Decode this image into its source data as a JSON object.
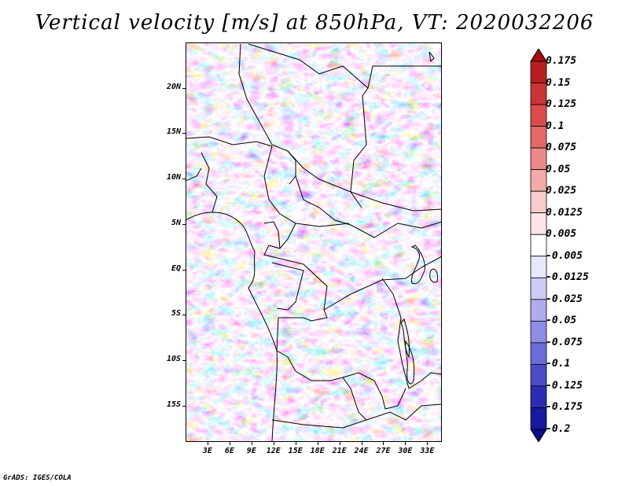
{
  "title": "Vertical velocity [m/s] at 850hPa, VT: 2020032206",
  "credit": "GrADS: IGES/COLA",
  "map": {
    "variable": "Vertical velocity",
    "units": "m/s",
    "level": "850hPa",
    "valid_time": "2020032206",
    "region": "Central / Northern Africa",
    "lon_range": [
      0,
      35
    ],
    "lat_range": [
      -19,
      25
    ],
    "lat_ticks": [
      "20N",
      "15N",
      "10N",
      "5N",
      "EQ",
      "5S",
      "10S",
      "15S"
    ],
    "lat_values": [
      20,
      15,
      10,
      5,
      0,
      -5,
      -10,
      -15
    ],
    "lon_ticks": [
      "3E",
      "6E",
      "9E",
      "12E",
      "15E",
      "18E",
      "21E",
      "24E",
      "27E",
      "30E",
      "33E"
    ],
    "lon_values": [
      3,
      6,
      9,
      12,
      15,
      18,
      21,
      24,
      27,
      30,
      33
    ]
  },
  "legend": {
    "labels": [
      "0.175",
      "0.15",
      "0.125",
      "0.1",
      "0.075",
      "0.05",
      "0.025",
      "0.0125",
      "0.005",
      "-0.005",
      "-0.0125",
      "-0.025",
      "-0.05",
      "-0.075",
      "-0.1",
      "-0.125",
      "-0.175",
      "-0.2"
    ],
    "colors": [
      "#a01010",
      "#b82020",
      "#cc3434",
      "#dc4c4c",
      "#e46a6a",
      "#ec8a8a",
      "#f2aaaa",
      "#f8cccc",
      "#fce6e6",
      "#ffffff",
      "#e8e8fb",
      "#cccbf5",
      "#aeaeee",
      "#8e8ee6",
      "#6c6cd8",
      "#4c4cc8",
      "#2c2cb4",
      "#1818a0",
      "#0a0a8c"
    ]
  }
}
